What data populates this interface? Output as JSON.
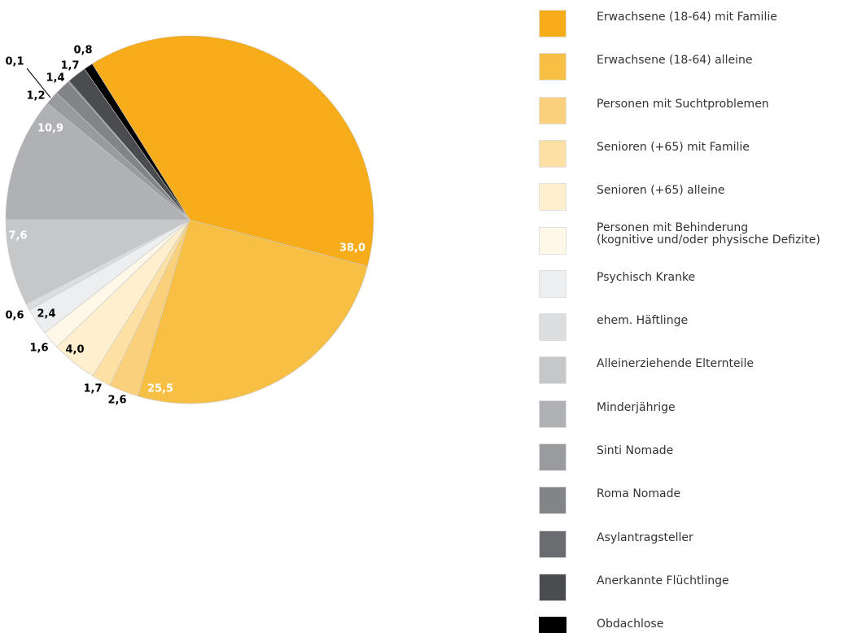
{
  "chart_data": {
    "type": "pie",
    "categories": [
      "Erwachsene (18-64) mit Familie",
      "Erwachsene (18-64) alleine",
      "Personen mit Suchtproblemen",
      "Senioren (+65) mit Familie",
      "Senioren (+65) alleine",
      "Personen mit Behinderung\n(kognitive und/oder physische Defizite)",
      "Psychisch Kranke",
      "ehem. Häftlinge",
      "Alleinerziehende Elternteile",
      "Minderjährige",
      "Sinti Nomade",
      "Roma Nomade",
      "Asylantragsteller",
      "Anerkannte Flüchtlinge",
      "Obdachlose"
    ],
    "values": [
      38.0,
      25.5,
      2.6,
      1.7,
      4.0,
      1.6,
      2.4,
      0.6,
      7.6,
      10.9,
      1.2,
      1.4,
      0.1,
      1.7,
      0.8
    ],
    "value_labels": [
      "38,0",
      "25,5",
      "2,6",
      "1,7",
      "4,0",
      "1,6",
      "2,4",
      "0,6",
      "7,6",
      "10,9",
      "1,2",
      "1,4",
      "0,1",
      "1,7",
      "0,8"
    ],
    "colors": [
      "#f7ac19",
      "#f8bf45",
      "#fbd07a",
      "#fde0a3",
      "#feefcf",
      "#fff7e8",
      "#eceef0",
      "#dcdddf",
      "#c6c7c9",
      "#b0b1b4",
      "#9a9b9e",
      "#838487",
      "#6b6c70",
      "#4b4c50",
      "#000000"
    ],
    "legend": "right"
  }
}
